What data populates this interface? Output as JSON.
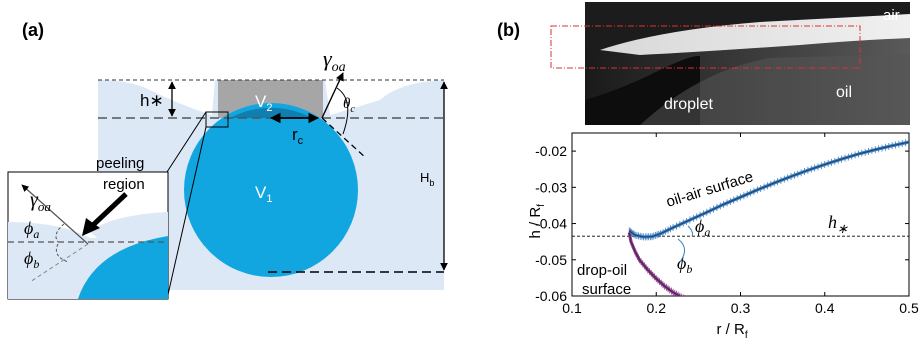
{
  "panel_a": {
    "tag": "(a)",
    "labels": {
      "h_star": "h∗",
      "v2": "V",
      "v2_sub": "2",
      "v1": "V",
      "v1_sub": "1",
      "rc": "r",
      "rc_sub": "c",
      "theta": "θ",
      "theta_sub": "c",
      "gamma": "γ",
      "gamma_sub": "oa",
      "hb": "H",
      "hb_sub": "b",
      "peeling_line1": "peeling",
      "peeling_line2": "region",
      "inset_gamma": "γ",
      "inset_gamma_sub": "oa",
      "phi_a": "ϕ",
      "phi_a_sub": "a",
      "phi_b": "ϕ",
      "phi_b_sub": "b"
    },
    "colors": {
      "oil": "#dce8f5",
      "droplet": "#12a6e0",
      "droplet_cap": "#0e7fb0",
      "particle": "#a6a6a6"
    }
  },
  "panel_b": {
    "tag": "(b)",
    "photo_labels": {
      "air": "air",
      "oil": "oil",
      "droplet": "droplet"
    },
    "plot_labels": {
      "oil_air": "oil-air surface",
      "drop_oil_line1": "drop-oil",
      "drop_oil_line2": "surface",
      "h_star": "h",
      "h_star_sub": "∗",
      "phi_a": "ϕ",
      "phi_a_sub": "a",
      "phi_b": "ϕ",
      "phi_b_sub": "b"
    },
    "colors": {
      "oil_air": "#3a7ec0",
      "drop_oil": "#8b3f8b"
    }
  },
  "chart_data": {
    "type": "line",
    "xlabel": "r / R",
    "xlabel_sub": "f",
    "ylabel": "h / R",
    "ylabel_sub": "f",
    "xlim": [
      0.1,
      0.5
    ],
    "ylim": [
      -0.06,
      -0.015
    ],
    "xticks": [
      0.1,
      0.2,
      0.3,
      0.4,
      0.5
    ],
    "xtick_labels": [
      "0.1",
      "0.2",
      "0.3",
      "0.4",
      "0.5"
    ],
    "yticks": [
      -0.06,
      -0.05,
      -0.04,
      -0.03,
      -0.02
    ],
    "ytick_labels": [
      "-0.06",
      "-0.05",
      "-0.04",
      "-0.03",
      "-0.02"
    ],
    "hline": {
      "y": -0.0435,
      "label": "h∗"
    },
    "series": [
      {
        "x": [
          0.168,
          0.175,
          0.185,
          0.195,
          0.205,
          0.22,
          0.24,
          0.26,
          0.28,
          0.3,
          0.32,
          0.34,
          0.36,
          0.38,
          0.4,
          0.42,
          0.44,
          0.46,
          0.48,
          0.5
        ],
        "y": [
          -0.042,
          -0.0432,
          -0.0437,
          -0.0436,
          -0.0428,
          -0.0411,
          -0.039,
          -0.0369,
          -0.0347,
          -0.0327,
          -0.0307,
          -0.0288,
          -0.027,
          -0.0253,
          -0.0237,
          -0.0222,
          -0.0208,
          -0.0196,
          -0.0185,
          -0.0175
        ]
      },
      {
        "x": [
          0.168,
          0.17,
          0.175,
          0.18,
          0.19,
          0.2,
          0.21,
          0.22,
          0.23,
          0.24
        ],
        "y": [
          -0.0425,
          -0.045,
          -0.0478,
          -0.05,
          -0.0528,
          -0.0552,
          -0.0573,
          -0.059,
          -0.0603,
          -0.0613
        ]
      }
    ]
  }
}
